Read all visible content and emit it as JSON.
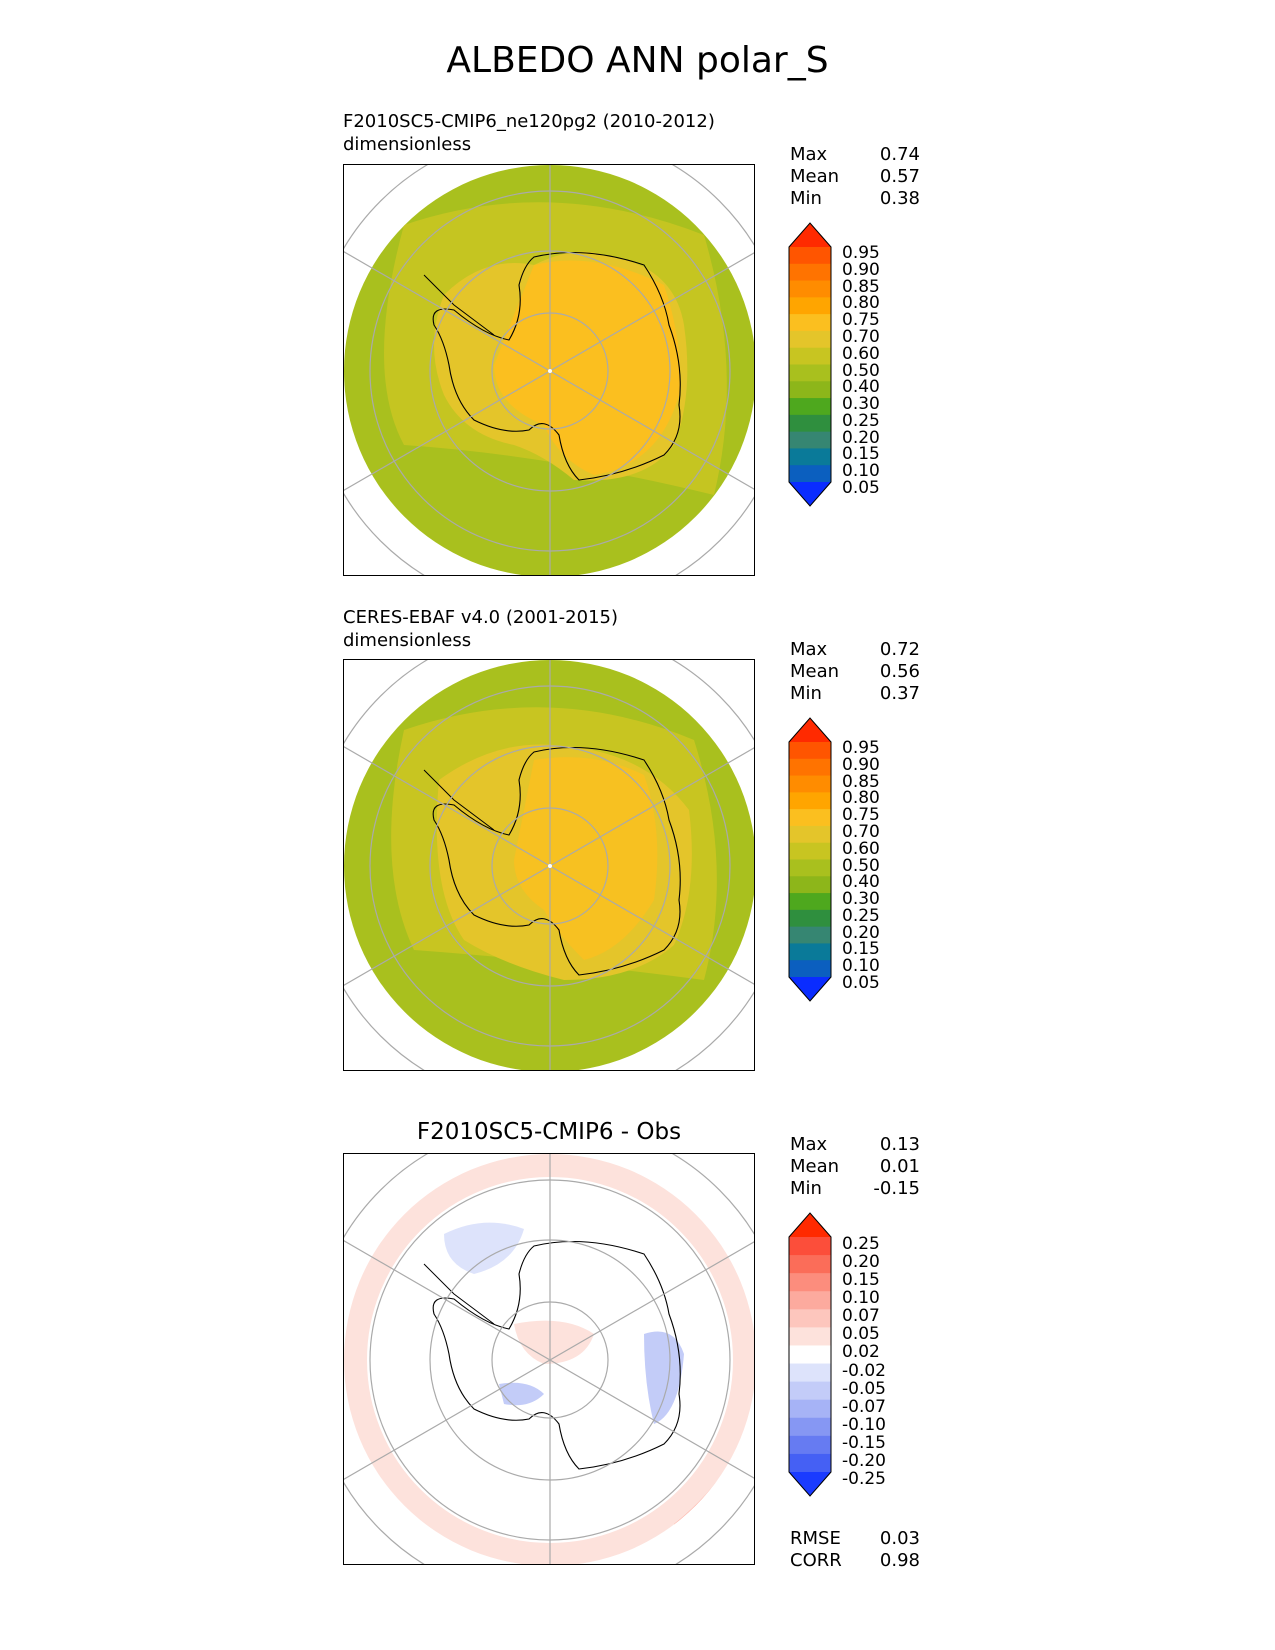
{
  "title": "ALBEDO ANN polar_S",
  "panels": [
    {
      "id": "test",
      "subtitle_line1": "F2010SC5-CMIP6_ne120pg2 (2010-2012)",
      "subtitle_line2": "dimensionless",
      "stats": [
        {
          "label": "Max",
          "value": "0.74"
        },
        {
          "label": "Mean",
          "value": "0.57"
        },
        {
          "label": "Min",
          "value": "0.38"
        }
      ],
      "colorbar": {
        "labels": [
          "0.95",
          "0.90",
          "0.85",
          "0.80",
          "0.75",
          "0.70",
          "0.60",
          "0.50",
          "0.40",
          "0.30",
          "0.25",
          "0.20",
          "0.15",
          "0.10",
          "0.05"
        ],
        "colors": [
          "#ff2a00",
          "#ff5500",
          "#ff7300",
          "#ff8c00",
          "#ffa500",
          "#fbbf1f",
          "#e4c52a",
          "#c8c521",
          "#a9c01e",
          "#8db61a",
          "#4ea81e",
          "#2f8f3e",
          "#368672",
          "#0a7a99",
          "#0b5fbf",
          "#0a2cff"
        ]
      }
    },
    {
      "id": "reference",
      "subtitle_line1": "CERES-EBAF v4.0 (2001-2015)",
      "subtitle_line2": "dimensionless",
      "stats": [
        {
          "label": "Max",
          "value": "0.72"
        },
        {
          "label": "Mean",
          "value": "0.56"
        },
        {
          "label": "Min",
          "value": "0.37"
        }
      ],
      "colorbar": {
        "labels": [
          "0.95",
          "0.90",
          "0.85",
          "0.80",
          "0.75",
          "0.70",
          "0.60",
          "0.50",
          "0.40",
          "0.30",
          "0.25",
          "0.20",
          "0.15",
          "0.10",
          "0.05"
        ],
        "colors": [
          "#ff2a00",
          "#ff5500",
          "#ff7300",
          "#ff8c00",
          "#ffa500",
          "#fbbf1f",
          "#e4c52a",
          "#c8c521",
          "#a9c01e",
          "#8db61a",
          "#4ea81e",
          "#2f8f3e",
          "#368672",
          "#0a7a99",
          "#0b5fbf",
          "#0a2cff"
        ]
      }
    },
    {
      "id": "difference",
      "title": "F2010SC5-CMIP6 - Obs",
      "stats": [
        {
          "label": "Max",
          "value": "0.13"
        },
        {
          "label": "Mean",
          "value": "0.01"
        },
        {
          "label": "Min",
          "value": "-0.15"
        }
      ],
      "colorbar": {
        "labels": [
          "0.25",
          "0.20",
          "0.15",
          "0.10",
          "0.07",
          "0.05",
          "0.02",
          "-0.02",
          "-0.05",
          "-0.07",
          "-0.10",
          "-0.15",
          "-0.20",
          "-0.25"
        ],
        "colors": [
          "#ff2a00",
          "#fc4e3a",
          "#fb6d59",
          "#fc8d7d",
          "#fcaa9e",
          "#fdc6bd",
          "#fde2dc",
          "#ffffff",
          "#dde3fb",
          "#c3ccf8",
          "#a6b3f6",
          "#8697f3",
          "#667bf2",
          "#4560f4",
          "#1a3bff"
        ]
      },
      "metrics": [
        {
          "label": "RMSE",
          "value": "0.03"
        },
        {
          "label": "CORR",
          "value": "0.98"
        }
      ]
    }
  ]
}
